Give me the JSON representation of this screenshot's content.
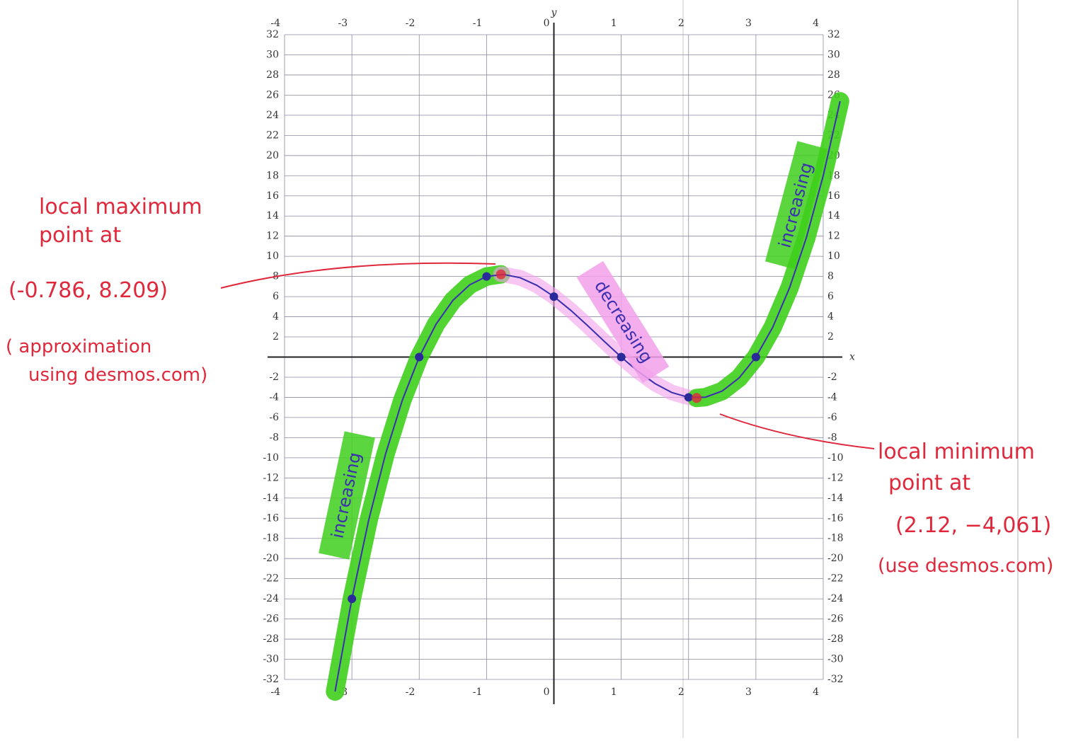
{
  "chart_data": {
    "type": "line",
    "x_label": "x",
    "y_label": "y",
    "xlim": [
      -4,
      4
    ],
    "ylim": [
      -32,
      32
    ],
    "xticks": [
      -4,
      -3,
      -2,
      -1,
      0,
      1,
      2,
      3,
      4
    ],
    "yticks": [
      -32,
      -30,
      -28,
      -26,
      -24,
      -22,
      -20,
      -18,
      -16,
      -14,
      -12,
      -10,
      -8,
      -6,
      -4,
      -2,
      2,
      4,
      6,
      8,
      10,
      12,
      14,
      16,
      18,
      20,
      22,
      24,
      26,
      28,
      30,
      32
    ],
    "grid": true,
    "series": [
      {
        "color": "#3b2fb0",
        "x": [
          -3.25,
          -3,
          -2.75,
          -2.5,
          -2.25,
          -2,
          -1.75,
          -1.5,
          -1.25,
          -1,
          -0.75,
          -0.5,
          -0.25,
          0,
          0.25,
          0.5,
          0.75,
          1,
          1.25,
          1.5,
          1.75,
          2,
          2.25,
          2.5,
          2.75,
          3,
          3.25,
          3.5,
          3.75,
          4,
          4.25
        ],
        "values": [
          -33.2,
          -24,
          -16.17,
          -9.625,
          -4.266,
          0,
          3.266,
          5.625,
          7.172,
          8,
          8.203,
          7.875,
          7.109,
          6,
          4.641,
          3.125,
          1.547,
          0,
          -1.422,
          -2.625,
          -3.516,
          -4,
          -3.984,
          -3.375,
          -2.078,
          0,
          2.953,
          6.875,
          11.859,
          18,
          25.391
        ]
      }
    ],
    "points": {
      "color": "#2a2a9a",
      "x": [
        -3,
        -2,
        -1,
        0,
        1,
        2,
        3
      ],
      "values": [
        -24,
        0,
        8,
        6,
        0,
        -4,
        0
      ]
    },
    "extrema": {
      "color": "#e0283c",
      "x": [
        -0.786,
        2.12
      ],
      "values": [
        8.209,
        -4.061
      ]
    },
    "regions": [
      {
        "label": "increasing",
        "color": "#3fcf1c"
      },
      {
        "label": "decreasing",
        "color": "#f2a0ea"
      },
      {
        "label": "increasing",
        "color": "#3fcf1c"
      }
    ],
    "annotations": {
      "max_title": [
        "local maximum",
        "point at"
      ],
      "max_point": "(-0.786, 8.209)",
      "max_note": [
        "( approximation",
        "using desmos.com)"
      ],
      "min_title": [
        "local minimum",
        "point at"
      ],
      "min_point": "(2.12, −4,061)",
      "min_note": "(use desmos.com)"
    }
  }
}
